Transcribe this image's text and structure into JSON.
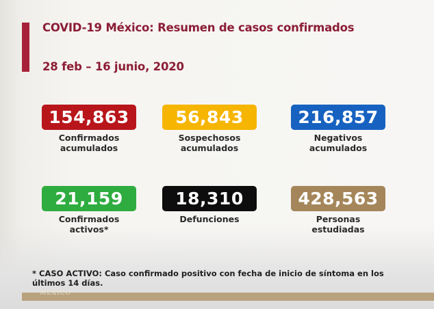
{
  "header": {
    "title": "COVID-19 México: Resumen de casos confirmados",
    "date_range": "28 feb – 16 junio, 2020"
  },
  "cards": [
    {
      "value": "154,863",
      "label": "Confirmados acumulados",
      "color": "#b8161b"
    },
    {
      "value": "56,843",
      "label": "Sospechosos acumulados",
      "color": "#f6b500"
    },
    {
      "value": "216,857",
      "label": "Negativos acumulados",
      "color": "#1762c0"
    },
    {
      "value": "21,159",
      "label": "Confirmados activos*",
      "color": "#2fac3f"
    },
    {
      "value": "18,310",
      "label": "Defunciones",
      "color": "#0d0d0d"
    },
    {
      "value": "428,563",
      "label": "Personas estudiadas",
      "color": "#a4865a"
    }
  ],
  "footnote": "* CASO ACTIVO: Caso confirmado positivo con fecha de inicio de síntoma en los últimos 14 días.",
  "logo": {
    "text": "MÉXICO"
  }
}
